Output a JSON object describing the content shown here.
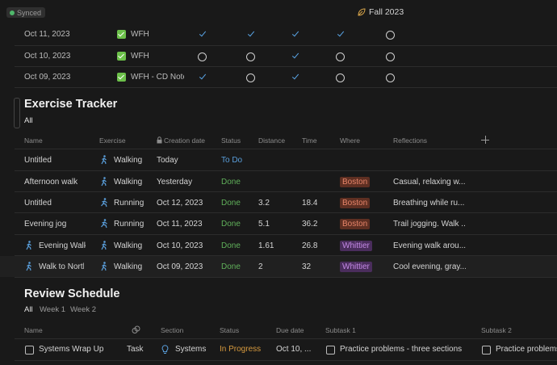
{
  "header": {
    "synced_label": "Synced",
    "semester_title": "Fall 2023",
    "colors": {
      "synced_dot": "#4fb76b",
      "leaf_icon": "#d8a54a"
    }
  },
  "daily_log": {
    "rows": [
      {
        "date": "Oct 11, 2023",
        "label": "WFH",
        "marks": [
          "check",
          "check",
          "check",
          "check",
          "circle"
        ]
      },
      {
        "date": "Oct 10, 2023",
        "label": "WFH",
        "marks": [
          "circle",
          "circle",
          "check",
          "circle",
          "circle"
        ]
      },
      {
        "date": "Oct 09, 2023",
        "label": "WFH - CD Note",
        "marks": [
          "check",
          "circle",
          "check",
          "circle",
          "circle"
        ]
      }
    ]
  },
  "exercise_tracker": {
    "title": "Exercise Tracker",
    "views": [
      "All"
    ],
    "columns": {
      "name": "Name",
      "exercise": "Exercise",
      "creation_date": "Creation date",
      "status": "Status",
      "distance": "Distance",
      "time": "Time",
      "where": "Where",
      "reflections": "Reflections"
    },
    "rows": [
      {
        "name": "Untitled",
        "exercise": "Walking",
        "date": "Today",
        "status": "To Do",
        "distance": "",
        "time": "",
        "where": "",
        "reflections": "",
        "name_icon": false
      },
      {
        "name": "Afternoon walk",
        "exercise": "Walking",
        "date": "Yesterday",
        "status": "Done",
        "distance": "",
        "time": "",
        "where": "Boston",
        "reflections": "Casual, relaxing w...",
        "name_icon": false
      },
      {
        "name": "Untitled",
        "exercise": "Running",
        "date": "Oct 12, 2023",
        "status": "Done",
        "distance": "3.2",
        "time": "18.4",
        "where": "Boston",
        "reflections": "Breathing while ru...",
        "name_icon": false
      },
      {
        "name": "Evening jog",
        "exercise": "Running",
        "date": "Oct 11, 2023",
        "status": "Done",
        "distance": "5.1",
        "time": "36.2",
        "where": "Boston",
        "reflections": "Trail jogging. Walk ...",
        "name_icon": false
      },
      {
        "name": "Evening Walk",
        "exercise": "Walking",
        "date": "Oct 10, 2023",
        "status": "Done",
        "distance": "1.61",
        "time": "26.8",
        "where": "Whittier",
        "reflections": "Evening walk arou...",
        "name_icon": true
      },
      {
        "name": "Walk to North",
        "exercise": "Walking",
        "date": "Oct 09, 2023",
        "status": "Done",
        "distance": "2",
        "time": "32",
        "where": "Whittier",
        "reflections": "Cool evening, gray...",
        "name_icon": true
      }
    ]
  },
  "review_schedule": {
    "title": "Review Schedule",
    "views": [
      "All",
      "Week 1",
      "Week 2"
    ],
    "columns": {
      "name": "Name",
      "section": "Section",
      "status": "Status",
      "due_date": "Due date",
      "subtask1": "Subtask 1",
      "subtask2": "Subtask 2"
    },
    "rows": [
      {
        "name": "Systems Wrap Up",
        "type": "Task",
        "section": "Systems",
        "status": "In Progress",
        "due_date": "Oct 10, ...",
        "subtask1": "Practice problems - three sections",
        "subtask2": "Practice problems"
      }
    ]
  }
}
